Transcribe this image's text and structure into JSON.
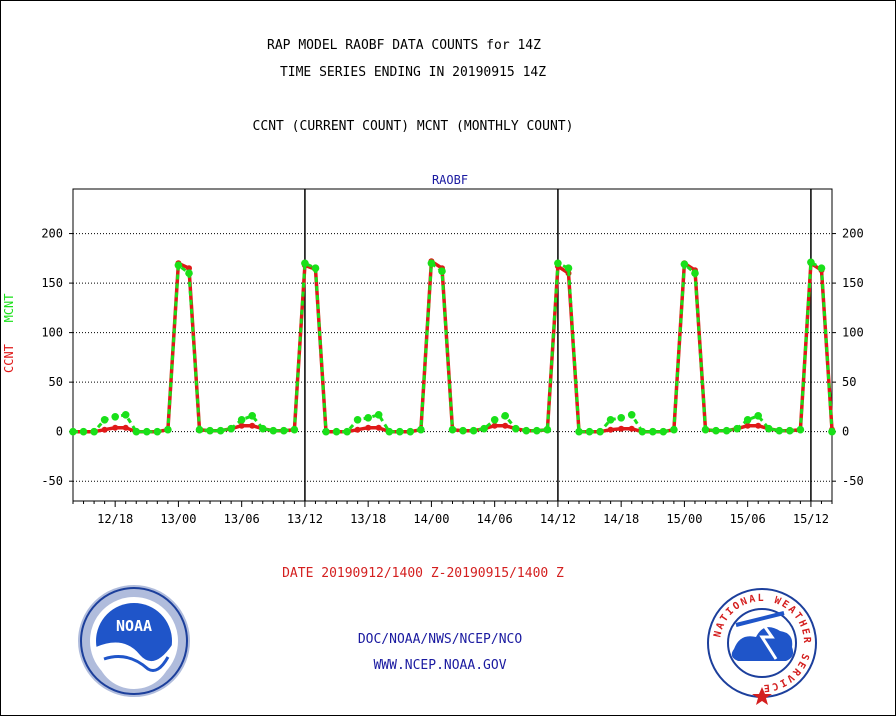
{
  "header": {
    "title_line1": "RAP MODEL RAOBF DATA COUNTS for 14Z",
    "title_line2": "TIME SERIES ENDING IN 20190915 14Z",
    "subtitle": "CCNT (CURRENT COUNT) MCNT (MONTHLY COUNT)"
  },
  "footer": {
    "date_range": "DATE 20190912/1400 Z-20190915/1400 Z",
    "credit_line1": "DOC/NOAA/NWS/NCEP/NCO",
    "credit_line2": "WWW.NCEP.NOAA.GOV"
  },
  "logos": {
    "left": "NOAA",
    "right_ring": "NATIONAL WEATHER SERVICE"
  },
  "colors": {
    "ccnt": "#e01919",
    "mcnt": "#19e019",
    "title": "#000000",
    "date_text": "#d41f1f",
    "credit_text": "#1a1aa0"
  },
  "chart_data": {
    "type": "line",
    "title": "RAOBF",
    "ylabel_parts": [
      "CCNT",
      "MCNT"
    ],
    "xlabel": "",
    "ylim": [
      -70,
      245
    ],
    "yticks": [
      -50,
      0,
      50,
      100,
      150,
      200
    ],
    "x_unit": "hours from 20190912/1400 Z",
    "xlim": [
      0,
      72
    ],
    "x_ticks": [
      {
        "x": 4,
        "label": "12/18"
      },
      {
        "x": 10,
        "label": "13/00"
      },
      {
        "x": 16,
        "label": "13/06"
      },
      {
        "x": 22,
        "label": "13/12"
      },
      {
        "x": 28,
        "label": "13/18"
      },
      {
        "x": 34,
        "label": "14/00"
      },
      {
        "x": 40,
        "label": "14/06"
      },
      {
        "x": 46,
        "label": "14/12"
      },
      {
        "x": 52,
        "label": "14/18"
      },
      {
        "x": 58,
        "label": "15/00"
      },
      {
        "x": 64,
        "label": "15/06"
      },
      {
        "x": 70,
        "label": "15/12"
      }
    ],
    "day_dividers": [
      22,
      46,
      70
    ],
    "grid": "horizontal dotted",
    "x": [
      0,
      1,
      2,
      3,
      4,
      5,
      6,
      7,
      8,
      9,
      10,
      11,
      12,
      13,
      14,
      15,
      16,
      17,
      18,
      19,
      20,
      21,
      22,
      23,
      24,
      25,
      26,
      27,
      28,
      29,
      30,
      31,
      32,
      33,
      34,
      35,
      36,
      37,
      38,
      39,
      40,
      41,
      42,
      43,
      44,
      45,
      46,
      47,
      48,
      49,
      50,
      51,
      52,
      53,
      54,
      55,
      56,
      57,
      58,
      59,
      60,
      61,
      62,
      63,
      64,
      65,
      66,
      67,
      68,
      69,
      70,
      71,
      72
    ],
    "series": [
      {
        "name": "CCNT",
        "color": "#e01919",
        "values": [
          0,
          0,
          0,
          2,
          4,
          4,
          0,
          0,
          0,
          2,
          170,
          165,
          2,
          1,
          1,
          3,
          6,
          6,
          3,
          1,
          1,
          2,
          168,
          164,
          0,
          0,
          0,
          2,
          4,
          4,
          0,
          0,
          0,
          2,
          172,
          165,
          2,
          1,
          1,
          3,
          6,
          6,
          3,
          1,
          1,
          2,
          167,
          160,
          0,
          0,
          0,
          2,
          3,
          3,
          0,
          0,
          0,
          2,
          170,
          163,
          2,
          1,
          1,
          3,
          6,
          6,
          3,
          1,
          1,
          2,
          170,
          163,
          2
        ]
      },
      {
        "name": "MCNT",
        "color": "#19e019",
        "values": [
          0,
          0,
          0,
          12,
          15,
          17,
          0,
          0,
          0,
          2,
          168,
          160,
          2,
          1,
          1,
          3,
          12,
          16,
          3,
          1,
          1,
          2,
          170,
          165,
          0,
          0,
          0,
          12,
          14,
          17,
          0,
          0,
          0,
          2,
          170,
          162,
          2,
          1,
          1,
          3,
          12,
          16,
          3,
          1,
          1,
          2,
          170,
          165,
          0,
          0,
          0,
          12,
          14,
          17,
          0,
          0,
          0,
          2,
          169,
          160,
          2,
          1,
          1,
          3,
          12,
          16,
          3,
          1,
          1,
          2,
          171,
          165,
          0
        ]
      }
    ]
  }
}
